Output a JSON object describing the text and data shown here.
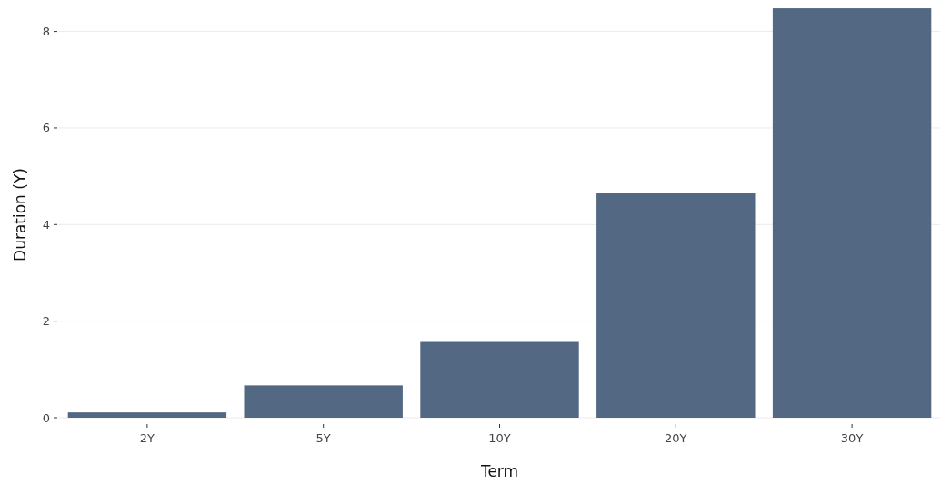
{
  "chart_data": {
    "type": "bar",
    "xlabel": "Term",
    "ylabel": "Duration (Y)",
    "categories": [
      "2Y",
      "5Y",
      "10Y",
      "20Y",
      "30Y"
    ],
    "values": [
      0.11,
      0.67,
      1.57,
      4.65,
      8.48
    ],
    "color": "#536882",
    "ylim": [
      0,
      8.5
    ],
    "yticks": [
      0,
      2,
      4,
      6,
      8
    ],
    "grid": "y"
  }
}
